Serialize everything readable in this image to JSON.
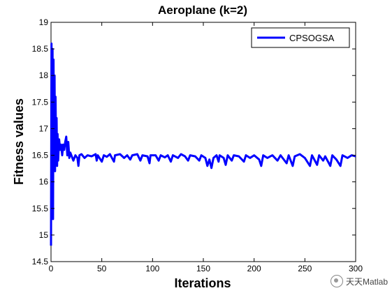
{
  "chart_data": {
    "type": "line",
    "title": "Aeroplane (k=2)",
    "xlabel": "Iterations",
    "ylabel": "Fitness values",
    "xlim": [
      0,
      300
    ],
    "ylim": [
      14.5,
      19
    ],
    "xticks": [
      0,
      50,
      100,
      150,
      200,
      250,
      300
    ],
    "yticks": [
      14.5,
      15,
      15.5,
      16,
      16.5,
      17,
      17.5,
      18,
      18.5,
      19
    ],
    "legend_position": "top-right",
    "grid": false,
    "series": [
      {
        "name": "CPSOGSA",
        "color": "#0000ff",
        "points": [
          [
            0,
            14.8
          ],
          [
            0.5,
            18.6
          ],
          [
            1,
            16.0
          ],
          [
            1.5,
            18.5
          ],
          [
            2,
            15.3
          ],
          [
            2.5,
            18.3
          ],
          [
            3,
            16.4
          ],
          [
            3.5,
            18.0
          ],
          [
            4,
            16.2
          ],
          [
            4.5,
            17.6
          ],
          [
            5,
            16.5
          ],
          [
            5.5,
            17.2
          ],
          [
            6,
            16.3
          ],
          [
            6.5,
            16.9
          ],
          [
            7,
            16.4
          ],
          [
            8,
            16.8
          ],
          [
            9,
            16.6
          ],
          [
            10,
            16.7
          ],
          [
            11,
            16.5
          ],
          [
            12,
            16.7
          ],
          [
            13,
            16.6
          ],
          [
            14,
            16.75
          ],
          [
            15,
            16.85
          ],
          [
            16,
            16.5
          ],
          [
            17,
            16.75
          ],
          [
            18,
            16.45
          ],
          [
            19,
            16.55
          ],
          [
            20,
            16.5
          ],
          [
            22,
            16.4
          ],
          [
            24,
            16.5
          ],
          [
            26,
            16.45
          ],
          [
            27,
            16.3
          ],
          [
            28,
            16.5
          ],
          [
            30,
            16.52
          ],
          [
            33,
            16.45
          ],
          [
            36,
            16.5
          ],
          [
            40,
            16.48
          ],
          [
            44,
            16.52
          ],
          [
            45,
            16.4
          ],
          [
            46,
            16.5
          ],
          [
            50,
            16.38
          ],
          [
            52,
            16.5
          ],
          [
            55,
            16.47
          ],
          [
            58,
            16.52
          ],
          [
            60,
            16.45
          ],
          [
            62,
            16.38
          ],
          [
            63,
            16.5
          ],
          [
            68,
            16.52
          ],
          [
            72,
            16.45
          ],
          [
            75,
            16.5
          ],
          [
            78,
            16.42
          ],
          [
            80,
            16.5
          ],
          [
            85,
            16.52
          ],
          [
            88,
            16.4
          ],
          [
            90,
            16.5
          ],
          [
            95,
            16.48
          ],
          [
            97,
            16.35
          ],
          [
            98,
            16.5
          ],
          [
            103,
            16.5
          ],
          [
            106,
            16.4
          ],
          [
            108,
            16.5
          ],
          [
            112,
            16.46
          ],
          [
            115,
            16.5
          ],
          [
            118,
            16.38
          ],
          [
            120,
            16.5
          ],
          [
            125,
            16.45
          ],
          [
            128,
            16.52
          ],
          [
            132,
            16.48
          ],
          [
            135,
            16.4
          ],
          [
            137,
            16.5
          ],
          [
            142,
            16.48
          ],
          [
            146,
            16.4
          ],
          [
            148,
            16.5
          ],
          [
            152,
            16.45
          ],
          [
            154,
            16.3
          ],
          [
            156,
            16.42
          ],
          [
            158,
            16.26
          ],
          [
            160,
            16.45
          ],
          [
            163,
            16.5
          ],
          [
            165,
            16.38
          ],
          [
            166,
            16.5
          ],
          [
            170,
            16.45
          ],
          [
            172,
            16.32
          ],
          [
            174,
            16.5
          ],
          [
            178,
            16.4
          ],
          [
            180,
            16.5
          ],
          [
            185,
            16.48
          ],
          [
            190,
            16.38
          ],
          [
            192,
            16.5
          ],
          [
            196,
            16.45
          ],
          [
            200,
            16.5
          ],
          [
            205,
            16.42
          ],
          [
            207,
            16.3
          ],
          [
            209,
            16.5
          ],
          [
            213,
            16.45
          ],
          [
            218,
            16.5
          ],
          [
            223,
            16.4
          ],
          [
            226,
            16.5
          ],
          [
            232,
            16.35
          ],
          [
            234,
            16.5
          ],
          [
            238,
            16.3
          ],
          [
            240,
            16.48
          ],
          [
            245,
            16.52
          ],
          [
            250,
            16.45
          ],
          [
            255,
            16.3
          ],
          [
            257,
            16.5
          ],
          [
            262,
            16.32
          ],
          [
            264,
            16.5
          ],
          [
            268,
            16.4
          ],
          [
            270,
            16.48
          ],
          [
            275,
            16.3
          ],
          [
            277,
            16.5
          ],
          [
            281,
            16.42
          ],
          [
            285,
            16.3
          ],
          [
            287,
            16.5
          ],
          [
            292,
            16.45
          ],
          [
            296,
            16.5
          ],
          [
            300,
            16.48
          ]
        ]
      }
    ]
  },
  "watermark": {
    "text": "天天Matlab"
  }
}
